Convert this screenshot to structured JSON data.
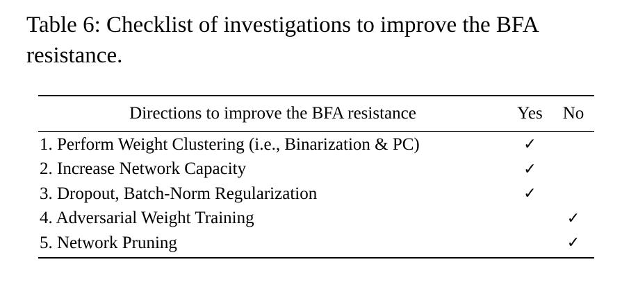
{
  "caption": "Table 6: Checklist of investigations to improve the BFA resistance.",
  "table": {
    "headers": {
      "directions": "Directions to improve the BFA resistance",
      "yes": "Yes",
      "no": "No"
    },
    "rows": [
      {
        "direction": "1. Perform Weight Clustering (i.e., Binarization & PC)",
        "yes": "✓",
        "no": ""
      },
      {
        "direction": "2. Increase Network Capacity",
        "yes": "✓",
        "no": ""
      },
      {
        "direction": "3. Dropout, Batch-Norm Regularization",
        "yes": "✓",
        "no": ""
      },
      {
        "direction": "4. Adversarial Weight Training",
        "yes": "",
        "no": "✓"
      },
      {
        "direction": "5. Network Pruning",
        "yes": "",
        "no": "✓"
      }
    ]
  }
}
